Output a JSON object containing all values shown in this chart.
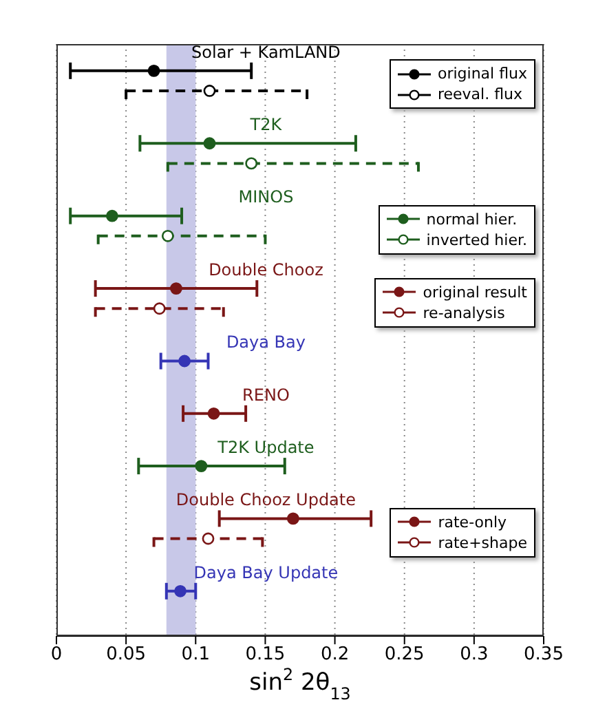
{
  "chart_data": {
    "type": "scatter",
    "orientation": "horizontal",
    "xlabel": "sin$^{2}$ 2θ$_{13}$",
    "categories": [
      "Solar + KamLAND",
      "T2K",
      "MINOS",
      "Double Chooz",
      "Daya Bay",
      "RENO",
      "T2K Update",
      "Double Chooz Update",
      "Daya Bay Update"
    ],
    "series": [
      {
        "name": "original flux",
        "color": "#000000",
        "line_style": "solid",
        "values": [
          0.07,
          null,
          null,
          null,
          null,
          null,
          null,
          null,
          null
        ],
        "errors": [
          [
            0.01,
            0.14
          ],
          null,
          null,
          null,
          null,
          null,
          null,
          null,
          null
        ]
      },
      {
        "name": "reeval. flux",
        "color": "#000000",
        "line_style": "dashed",
        "values": [
          0.11,
          null,
          null,
          null,
          null,
          null,
          null,
          null,
          null
        ],
        "errors": [
          [
            0.05,
            0.18
          ],
          null,
          null,
          null,
          null,
          null,
          null,
          null,
          null
        ]
      },
      {
        "name": "normal hier.",
        "color": "#1e5e1e",
        "line_style": "solid",
        "values": [
          null,
          0.11,
          0.04,
          null,
          null,
          null,
          null,
          null,
          null
        ],
        "errors": [
          null,
          [
            0.06,
            0.215
          ],
          [
            0.01,
            0.09
          ],
          null,
          null,
          null,
          null,
          null,
          null
        ]
      },
      {
        "name": "inverted hier.",
        "color": "#1e5e1e",
        "line_style": "dashed",
        "values": [
          null,
          0.14,
          0.08,
          null,
          null,
          null,
          null,
          null,
          null
        ],
        "errors": [
          null,
          [
            0.08,
            0.26
          ],
          [
            0.03,
            0.15
          ],
          null,
          null,
          null,
          null,
          null,
          null
        ]
      },
      {
        "name": "original result",
        "color": "#7a1616",
        "line_style": "solid",
        "values": [
          null,
          null,
          null,
          0.086,
          null,
          null,
          null,
          null,
          null
        ],
        "errors": [
          null,
          null,
          null,
          [
            0.028,
            0.144
          ],
          null,
          null,
          null,
          null,
          null
        ]
      },
      {
        "name": "re-analysis",
        "color": "#7a1616",
        "line_style": "dashed",
        "values": [
          null,
          null,
          null,
          0.074,
          null,
          null,
          null,
          null,
          null
        ],
        "errors": [
          null,
          null,
          null,
          [
            0.028,
            0.12
          ],
          null,
          null,
          null,
          null,
          null
        ]
      },
      {
        "color": "#3535b5",
        "line_style": "solid",
        "values": [
          null,
          null,
          null,
          null,
          0.092,
          null,
          null,
          null,
          0.089
        ],
        "errors": [
          null,
          null,
          null,
          null,
          [
            0.075,
            0.109
          ],
          null,
          null,
          null,
          [
            0.079,
            0.1
          ]
        ]
      },
      {
        "color": "#7a1616",
        "line_style": "solid",
        "values": [
          null,
          null,
          null,
          null,
          null,
          0.113,
          null,
          null,
          null
        ],
        "errors": [
          null,
          null,
          null,
          null,
          null,
          [
            0.091,
            0.136
          ],
          null,
          null,
          null
        ]
      },
      {
        "color": "#1e5e1e",
        "line_style": "solid",
        "values": [
          null,
          null,
          null,
          null,
          null,
          null,
          0.104,
          null,
          null
        ],
        "errors": [
          null,
          null,
          null,
          null,
          null,
          null,
          [
            0.059,
            0.164
          ],
          null,
          null
        ]
      },
      {
        "name": "rate-only",
        "color": "#7a1616",
        "line_style": "solid",
        "values": [
          null,
          null,
          null,
          null,
          null,
          null,
          null,
          0.17,
          null
        ],
        "errors": [
          null,
          null,
          null,
          null,
          null,
          null,
          null,
          [
            0.117,
            0.226
          ],
          null
        ]
      },
      {
        "name": "rate+shape",
        "color": "#7a1616",
        "line_style": "dashed",
        "values": [
          null,
          null,
          null,
          null,
          null,
          null,
          null,
          0.109,
          null
        ],
        "errors": [
          null,
          null,
          null,
          null,
          null,
          null,
          null,
          [
            0.07,
            0.148
          ],
          null
        ]
      }
    ],
    "xlim": [
      0,
      0.35
    ],
    "xticks": [
      0,
      0.05,
      0.1,
      0.15,
      0.2,
      0.25,
      0.3,
      0.35
    ],
    "bands": [
      {
        "axis": "x",
        "from": 0.079,
        "to": 0.1,
        "color": "#c8c8e8"
      }
    ],
    "grid": "x",
    "legend": "right",
    "marker": "circle",
    "tick_labels": "x"
  }
}
